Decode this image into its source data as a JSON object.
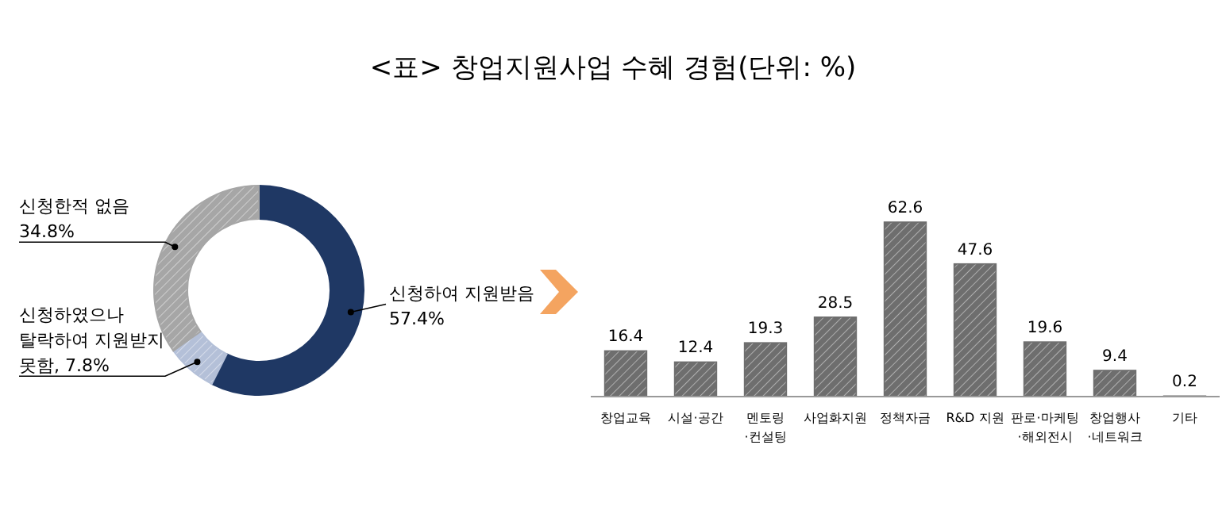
{
  "chart_data": [
    {
      "type": "donut",
      "title": "<표> 창업지원사업 수혜 경험(단위: %)",
      "categories": [
        "신청하여 지원받음",
        "신청하였으나\n탈락하여 지원받지\n못함",
        "신청한적 없음"
      ],
      "values": [
        57.4,
        7.8,
        34.8
      ],
      "value_labels": [
        "57.4%",
        "7.8%",
        "34.8%"
      ],
      "colors": [
        "#1f3864",
        "#b4c0d8",
        "#a6a6a6"
      ]
    },
    {
      "type": "bar",
      "categories": [
        "창업교육",
        "시설·공간",
        "멘토링\n·컨설팅",
        "사업화지원",
        "정책자금",
        "R&D 지원",
        "판로·마케팅\n·해외전시",
        "창업행사\n·네트워크",
        "기타"
      ],
      "values": [
        16.4,
        12.4,
        19.3,
        28.5,
        62.6,
        47.6,
        19.6,
        9.4,
        0.2
      ],
      "color": "#6e6e6e",
      "data_labels": true
    }
  ]
}
